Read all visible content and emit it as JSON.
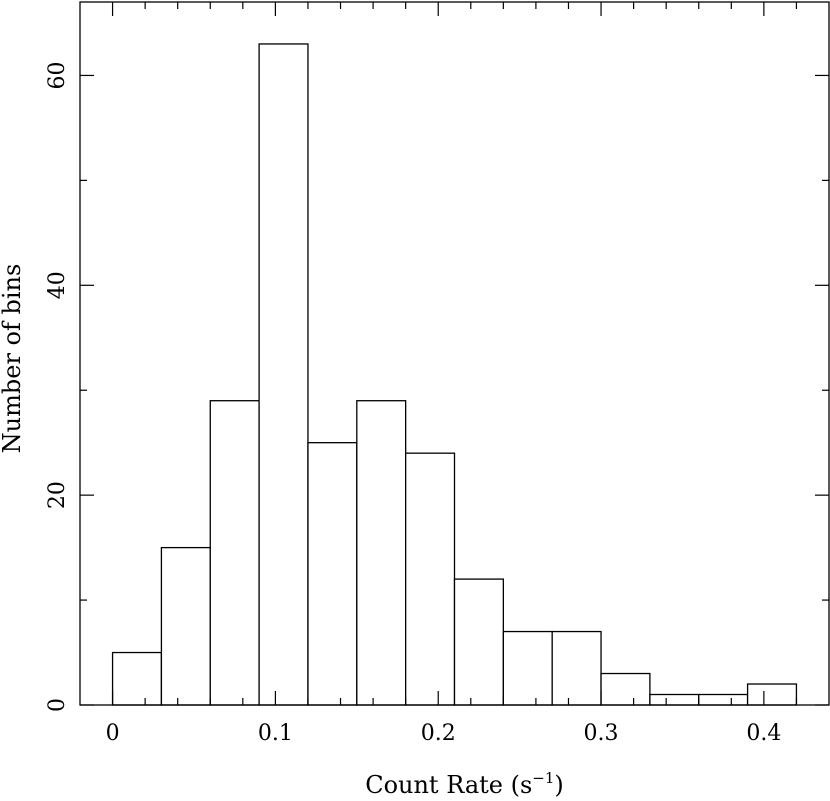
{
  "chart_data": {
    "type": "bar",
    "subtype": "histogram",
    "xlabel": "Count Rate (s",
    "xlabel_sup": "−1",
    "xlabel_close": ")",
    "ylabel": "Number of bins",
    "xlim": [
      -0.02,
      0.44
    ],
    "ylim": [
      0,
      67
    ],
    "x_ticks": [
      0,
      0.1,
      0.2,
      0.3,
      0.4
    ],
    "x_tick_labels": [
      "0",
      "0.1",
      "0.2",
      "0.3",
      "0.4"
    ],
    "y_ticks": [
      0,
      20,
      40,
      60
    ],
    "y_tick_labels": [
      "0",
      "20",
      "40",
      "60"
    ],
    "bin_edges": [
      0,
      0.03,
      0.06,
      0.09,
      0.12,
      0.15,
      0.18,
      0.21,
      0.24,
      0.27,
      0.3,
      0.33,
      0.36,
      0.39,
      0.42
    ],
    "values": [
      5,
      15,
      29,
      63,
      25,
      29,
      24,
      12,
      7,
      7,
      3,
      1,
      1,
      2
    ],
    "grid": false,
    "legend": "none"
  }
}
